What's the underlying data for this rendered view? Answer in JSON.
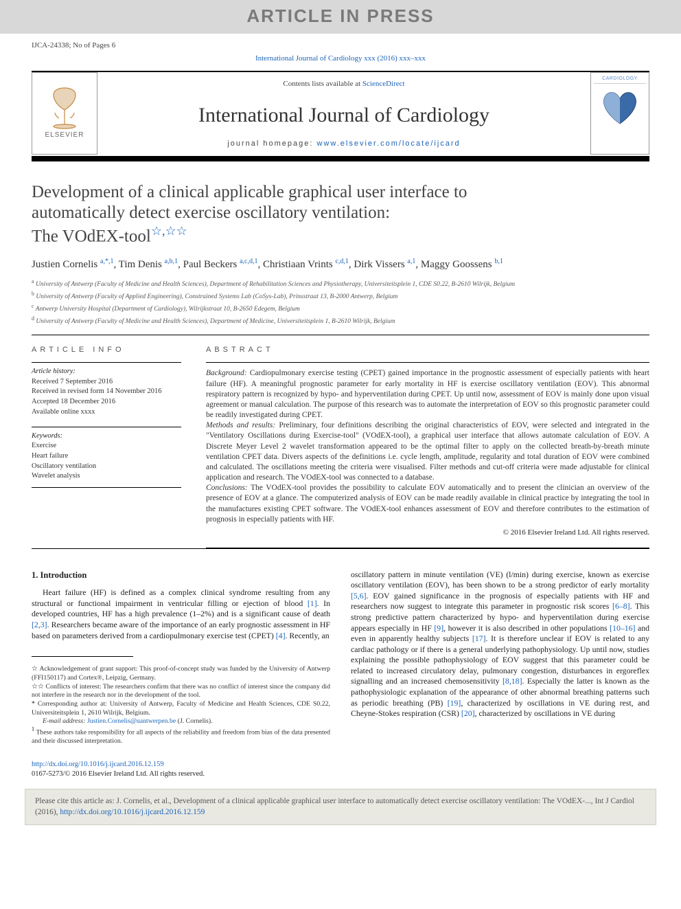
{
  "banner": {
    "text": "ARTICLE IN PRESS"
  },
  "header": {
    "left": "IJCA-24338; No of Pages 6",
    "topLink": "International Journal of Cardiology xxx (2016) xxx–xxx"
  },
  "sourceBar": {
    "elsevierText": "ELSEVIER",
    "contentsPrefix": "Contents lists available at ",
    "contentsLink": "ScienceDirect",
    "journalName": "International Journal of Cardiology",
    "homepagePrefix": "journal homepage: ",
    "homepageLink": "www.elsevier.com/locate/ijcard",
    "coverLabel": "CARDIOLOGY"
  },
  "title": {
    "line1": "Development of a clinical applicable graphical user interface to",
    "line2": "automatically detect exercise oscillatory ventilation:",
    "line3": "The VOdEX-tool",
    "stars": "☆,☆☆"
  },
  "authors": [
    {
      "name": "Justien Cornelis ",
      "sup": "a,*,1"
    },
    {
      "name": ", Tim Denis ",
      "sup": "a,b,1"
    },
    {
      "name": ", Paul Beckers ",
      "sup": "a,c,d,1"
    },
    {
      "name": ", Christiaan Vrints ",
      "sup": "c,d,1"
    },
    {
      "name": ", Dirk Vissers ",
      "sup": "a,1"
    },
    {
      "name": ", Maggy Goossens ",
      "sup": "b,1"
    }
  ],
  "affiliations": [
    {
      "sup": "a",
      "text": " University of Antwerp (Faculty of Medicine and Health Sciences), Department of Rehabilitation Sciences and Physiotherapy, Universiteitsplein 1, CDE S0.22, B-2610 Wilrijk, Belgium"
    },
    {
      "sup": "b",
      "text": " University of Antwerp (Faculty of Applied Engineering), Constrained Systems Lab (CoSys-Lab), Prinsstraat 13, B-2000 Antwerp, Belgium"
    },
    {
      "sup": "c",
      "text": " Antwerp University Hospital (Department of Cardiology), Wilrijkstraat 10, B-2650 Edegem, Belgium"
    },
    {
      "sup": "d",
      "text": " University of Antwerp (Faculty of Medicine and Health Sciences), Department of Medicine, Universiteitsplein 1, B-2610 Wilrijk, Belgium"
    }
  ],
  "info": {
    "heading": "article info",
    "historyLabel": "Article history:",
    "history": [
      "Received 7 September 2016",
      "Received in revised form 14 November 2016",
      "Accepted 18 December 2016",
      "Available online xxxx"
    ],
    "keywordsLabel": "Keywords:",
    "keywords": [
      "Exercise",
      "Heart failure",
      "Oscillatory ventilation",
      "Wavelet analysis"
    ]
  },
  "abstract": {
    "heading": "abstract",
    "paragraphs": [
      {
        "label": "Background:",
        "text": " Cardiopulmonary exercise testing (CPET) gained importance in the prognostic assessment of especially patients with heart failure (HF). A meaningful prognostic parameter for early mortality in HF is exercise oscillatory ventilation (EOV). This abnormal respiratory pattern is recognized by hypo- and hyperventilation during CPET. Up until now, assessment of EOV is mainly done upon visual agreement or manual calculation. The purpose of this research was to automate the interpretation of EOV so this prognostic parameter could be readily investigated during CPET."
      },
      {
        "label": "Methods and results:",
        "text": " Preliminary, four definitions describing the original characteristics of EOV, were selected and integrated in the \"Ventilatory Oscillations during Exercise-tool\" (VOdEX-tool), a graphical user interface that allows automate calculation of EOV. A Discrete Meyer Level 2 wavelet transformation appeared to be the optimal filter to apply on the collected breath-by-breath minute ventilation CPET data. Divers aspects of the definitions i.e. cycle length, amplitude, regularity and total duration of EOV were combined and calculated. The oscillations meeting the criteria were visualised. Filter methods and cut-off criteria were made adjustable for clinical application and research. The VOdEX-tool was connected to a database."
      },
      {
        "label": "Conclusions:",
        "text": " The VOdEX-tool provides the possibility to calculate EOV automatically and to present the clinician an overview of the presence of EOV at a glance. The computerized analysis of EOV can be made readily available in clinical practice by integrating the tool in the manufactures existing CPET software. The VOdEX-tool enhances assessment of EOV and therefore contributes to the estimation of prognosis in especially patients with HF."
      }
    ],
    "copyright": "© 2016 Elsevier Ireland Ltd. All rights reserved."
  },
  "body": {
    "section1Heading": "1. Introduction",
    "leftPara": "Heart failure (HF) is defined as a complex clinical syndrome resulting from any structural or functional impairment in ventricular filling or ejection of blood [1]. In developed countries, HF has a high prevalence (1–2%) and is a significant cause of death [2,3]. Researchers became aware of the importance of an early prognostic assessment in HF based on parameters derived from a cardiopulmonary exercise test (CPET) [4]. Recently, an",
    "leftRefs": {
      "r1": "[1]",
      "r23": "[2,3]",
      "r4": "[4]"
    },
    "rightPara": "oscillatory pattern in minute ventilation (VE) (l/min) during exercise, known as exercise oscillatory ventilation (EOV), has been shown to be a strong predictor of early mortality [5,6]. EOV gained significance in the prognosis of especially patients with HF and researchers now suggest to integrate this parameter in prognostic risk scores [6–8]. This strong predictive pattern characterized by hypo- and hyperventilation during exercise appears especially in HF [9], however it is also described in other populations [10–16] and even in apparently healthy subjects [17]. It is therefore unclear if EOV is related to any cardiac pathology or if there is a general underlying pathophysiology. Up until now, studies explaining the possible pathophysiology of EOV suggest that this parameter could be related to increased circulatory delay, pulmonary congestion, disturbances in ergoreflex signalling and an increased chemosensitivity [8,18]. Especially the latter is known as the pathophysiologic explanation of the appearance of other abnormal breathing patterns such as periodic breathing (PB) [19], characterized by oscillations in VE during rest, and Cheyne-Stokes respiration (CSR) [20], characterized by oscillations in VE during",
    "rightRefs": {
      "r56": "[5,6]",
      "r68": "[6–8]",
      "r9": "[9]",
      "r1016": "[10–16]",
      "r17": "[17]",
      "r818": "[8,18]",
      "r19": "[19]",
      "r20": "[20]"
    }
  },
  "footnotes": {
    "f1": {
      "star": "☆",
      "text": " Acknowledgement of grant support: This proof-of-concept study was funded by the University of Antwerp (FFI150117) and Cortex®, Leipzig, Germany."
    },
    "f2": {
      "star": "☆☆",
      "text": " Conflicts of interest: The researchers confirm that there was no conflict of interest since the company did not interfere in the research nor in the development of the tool."
    },
    "f3": {
      "star": "*",
      "text": " Corresponding author at: University of Antwerp, Faculty of Medicine and Health Sciences, CDE S0.22, Universiteitsplein 1, 2610 Wilrijk, Belgium."
    },
    "email": {
      "label": "E-mail address: ",
      "link": "Justien.Cornelis@uantwerpen.be",
      "tail": " (J. Cornelis)."
    },
    "f4": {
      "star": "1",
      "text": " These authors take responsibility for all aspects of the reliability and freedom from bias of the data presented and their discussed interpretation."
    }
  },
  "doi": {
    "link": "http://dx.doi.org/10.1016/j.ijcard.2016.12.159",
    "issn": "0167-5273/© 2016 Elsevier Ireland Ltd. All rights reserved."
  },
  "citeBox": {
    "prefix": "Please cite this article as: J. Cornelis, et al., Development of a clinical applicable graphical user interface to automatically detect exercise oscillatory ventilation: The VOdEX-..., Int J Cardiol (2016), ",
    "link": "http://dx.doi.org/10.1016/j.ijcard.2016.12.159"
  }
}
